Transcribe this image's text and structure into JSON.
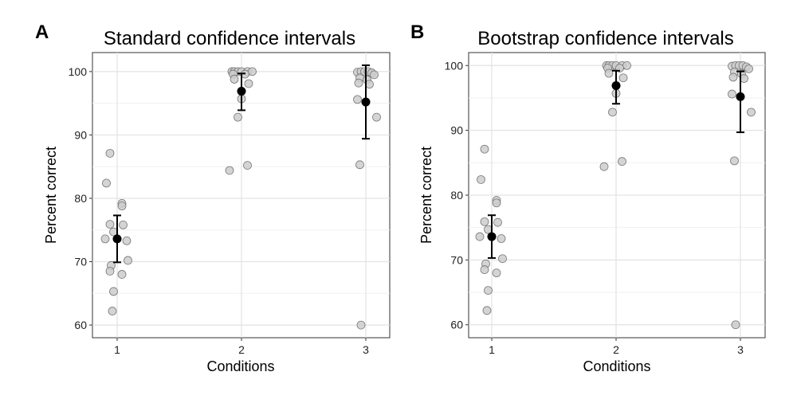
{
  "figure": {
    "panels": [
      "A",
      "B"
    ]
  },
  "chart_data": [
    {
      "type": "scatter",
      "panel_label": "A",
      "title": "Standard confidence intervals",
      "xlabel": "Conditions",
      "ylabel": "Percent correct",
      "categories": [
        "1",
        "2",
        "3"
      ],
      "ylim": [
        58,
        103
      ],
      "yticks": [
        60,
        70,
        80,
        90,
        100
      ],
      "grid": true,
      "legend": "none",
      "points_color": "#cccccc",
      "points_edge": "#777777",
      "summary_color": "#000000",
      "raw_points": [
        {
          "condition": 1,
          "jitter": -0.06,
          "value": 87.1
        },
        {
          "condition": 1,
          "jitter": -0.09,
          "value": 82.4
        },
        {
          "condition": 1,
          "jitter": 0.04,
          "value": 79.2
        },
        {
          "condition": 1,
          "jitter": 0.04,
          "value": 78.8
        },
        {
          "condition": 1,
          "jitter": -0.06,
          "value": 75.9
        },
        {
          "condition": 1,
          "jitter": 0.05,
          "value": 75.8
        },
        {
          "condition": 1,
          "jitter": -0.03,
          "value": 74.7
        },
        {
          "condition": 1,
          "jitter": -0.1,
          "value": 73.6
        },
        {
          "condition": 1,
          "jitter": 0.08,
          "value": 73.3
        },
        {
          "condition": 1,
          "jitter": 0.09,
          "value": 70.2
        },
        {
          "condition": 1,
          "jitter": -0.05,
          "value": 69.4
        },
        {
          "condition": 1,
          "jitter": -0.06,
          "value": 68.5
        },
        {
          "condition": 1,
          "jitter": 0.04,
          "value": 68.0
        },
        {
          "condition": 1,
          "jitter": -0.03,
          "value": 65.3
        },
        {
          "condition": 1,
          "jitter": -0.04,
          "value": 62.2
        },
        {
          "condition": 2,
          "jitter": -0.08,
          "value": 100.0
        },
        {
          "condition": 2,
          "jitter": -0.06,
          "value": 100.0
        },
        {
          "condition": 2,
          "jitter": -0.03,
          "value": 100.0
        },
        {
          "condition": 2,
          "jitter": 0.0,
          "value": 100.0
        },
        {
          "condition": 2,
          "jitter": 0.05,
          "value": 100.0
        },
        {
          "condition": 2,
          "jitter": 0.09,
          "value": 100.0
        },
        {
          "condition": 2,
          "jitter": -0.07,
          "value": 99.6
        },
        {
          "condition": 2,
          "jitter": 0.03,
          "value": 99.6
        },
        {
          "condition": 2,
          "jitter": -0.06,
          "value": 98.8
        },
        {
          "condition": 2,
          "jitter": 0.06,
          "value": 98.1
        },
        {
          "condition": 2,
          "jitter": 0.0,
          "value": 95.7
        },
        {
          "condition": 2,
          "jitter": -0.03,
          "value": 92.8
        },
        {
          "condition": 2,
          "jitter": -0.1,
          "value": 84.4
        },
        {
          "condition": 2,
          "jitter": 0.05,
          "value": 85.2
        },
        {
          "condition": 3,
          "jitter": -0.07,
          "value": 99.9
        },
        {
          "condition": 3,
          "jitter": -0.04,
          "value": 100.0
        },
        {
          "condition": 3,
          "jitter": -0.01,
          "value": 100.0
        },
        {
          "condition": 3,
          "jitter": 0.02,
          "value": 100.0
        },
        {
          "condition": 3,
          "jitter": 0.05,
          "value": 99.8
        },
        {
          "condition": 3,
          "jitter": 0.07,
          "value": 99.5
        },
        {
          "condition": 3,
          "jitter": -0.05,
          "value": 99.0
        },
        {
          "condition": 3,
          "jitter": 0.01,
          "value": 98.7
        },
        {
          "condition": 3,
          "jitter": -0.06,
          "value": 98.2
        },
        {
          "condition": 3,
          "jitter": 0.03,
          "value": 98.0
        },
        {
          "condition": 3,
          "jitter": -0.07,
          "value": 95.6
        },
        {
          "condition": 3,
          "jitter": 0.09,
          "value": 92.8
        },
        {
          "condition": 3,
          "jitter": -0.05,
          "value": 85.3
        },
        {
          "condition": 3,
          "jitter": -0.04,
          "value": 60.0
        }
      ],
      "summary": [
        {
          "condition": 1,
          "mean": 73.6,
          "lower": 69.9,
          "upper": 77.3
        },
        {
          "condition": 2,
          "mean": 96.9,
          "lower": 93.9,
          "upper": 99.7
        },
        {
          "condition": 3,
          "mean": 95.2,
          "lower": 89.4,
          "upper": 101.0
        }
      ]
    },
    {
      "type": "scatter",
      "panel_label": "B",
      "title": "Bootstrap confidence intervals",
      "xlabel": "Conditions",
      "ylabel": "Percent correct",
      "categories": [
        "1",
        "2",
        "3"
      ],
      "ylim": [
        58,
        102
      ],
      "yticks": [
        60,
        70,
        80,
        90,
        100
      ],
      "grid": true,
      "legend": "none",
      "points_color": "#cccccc",
      "points_edge": "#777777",
      "summary_color": "#000000",
      "raw_points": [
        {
          "condition": 1,
          "jitter": -0.06,
          "value": 87.1
        },
        {
          "condition": 1,
          "jitter": -0.09,
          "value": 82.4
        },
        {
          "condition": 1,
          "jitter": 0.04,
          "value": 79.2
        },
        {
          "condition": 1,
          "jitter": 0.04,
          "value": 78.8
        },
        {
          "condition": 1,
          "jitter": -0.06,
          "value": 75.9
        },
        {
          "condition": 1,
          "jitter": 0.05,
          "value": 75.8
        },
        {
          "condition": 1,
          "jitter": -0.03,
          "value": 74.7
        },
        {
          "condition": 1,
          "jitter": -0.1,
          "value": 73.6
        },
        {
          "condition": 1,
          "jitter": 0.08,
          "value": 73.3
        },
        {
          "condition": 1,
          "jitter": 0.09,
          "value": 70.2
        },
        {
          "condition": 1,
          "jitter": -0.05,
          "value": 69.4
        },
        {
          "condition": 1,
          "jitter": -0.06,
          "value": 68.5
        },
        {
          "condition": 1,
          "jitter": 0.04,
          "value": 68.0
        },
        {
          "condition": 1,
          "jitter": -0.03,
          "value": 65.3
        },
        {
          "condition": 1,
          "jitter": -0.04,
          "value": 62.2
        },
        {
          "condition": 2,
          "jitter": -0.08,
          "value": 100.0
        },
        {
          "condition": 2,
          "jitter": -0.06,
          "value": 100.0
        },
        {
          "condition": 2,
          "jitter": -0.03,
          "value": 100.0
        },
        {
          "condition": 2,
          "jitter": 0.0,
          "value": 100.0
        },
        {
          "condition": 2,
          "jitter": 0.05,
          "value": 100.0
        },
        {
          "condition": 2,
          "jitter": 0.09,
          "value": 100.0
        },
        {
          "condition": 2,
          "jitter": -0.07,
          "value": 99.6
        },
        {
          "condition": 2,
          "jitter": 0.03,
          "value": 99.6
        },
        {
          "condition": 2,
          "jitter": -0.06,
          "value": 98.8
        },
        {
          "condition": 2,
          "jitter": 0.06,
          "value": 98.1
        },
        {
          "condition": 2,
          "jitter": 0.0,
          "value": 95.7
        },
        {
          "condition": 2,
          "jitter": -0.03,
          "value": 92.8
        },
        {
          "condition": 2,
          "jitter": -0.1,
          "value": 84.4
        },
        {
          "condition": 2,
          "jitter": 0.05,
          "value": 85.2
        },
        {
          "condition": 3,
          "jitter": -0.07,
          "value": 99.9
        },
        {
          "condition": 3,
          "jitter": -0.04,
          "value": 100.0
        },
        {
          "condition": 3,
          "jitter": -0.01,
          "value": 100.0
        },
        {
          "condition": 3,
          "jitter": 0.02,
          "value": 100.0
        },
        {
          "condition": 3,
          "jitter": 0.05,
          "value": 99.8
        },
        {
          "condition": 3,
          "jitter": 0.07,
          "value": 99.5
        },
        {
          "condition": 3,
          "jitter": -0.05,
          "value": 99.0
        },
        {
          "condition": 3,
          "jitter": 0.01,
          "value": 98.7
        },
        {
          "condition": 3,
          "jitter": -0.06,
          "value": 98.2
        },
        {
          "condition": 3,
          "jitter": 0.03,
          "value": 98.0
        },
        {
          "condition": 3,
          "jitter": -0.07,
          "value": 95.6
        },
        {
          "condition": 3,
          "jitter": 0.09,
          "value": 92.8
        },
        {
          "condition": 3,
          "jitter": -0.05,
          "value": 85.3
        },
        {
          "condition": 3,
          "jitter": -0.04,
          "value": 60.0
        }
      ],
      "summary": [
        {
          "condition": 1,
          "mean": 73.6,
          "lower": 70.3,
          "upper": 76.9
        },
        {
          "condition": 2,
          "mean": 96.9,
          "lower": 94.1,
          "upper": 99.2
        },
        {
          "condition": 3,
          "mean": 95.2,
          "lower": 89.7,
          "upper": 99.1
        }
      ]
    }
  ]
}
